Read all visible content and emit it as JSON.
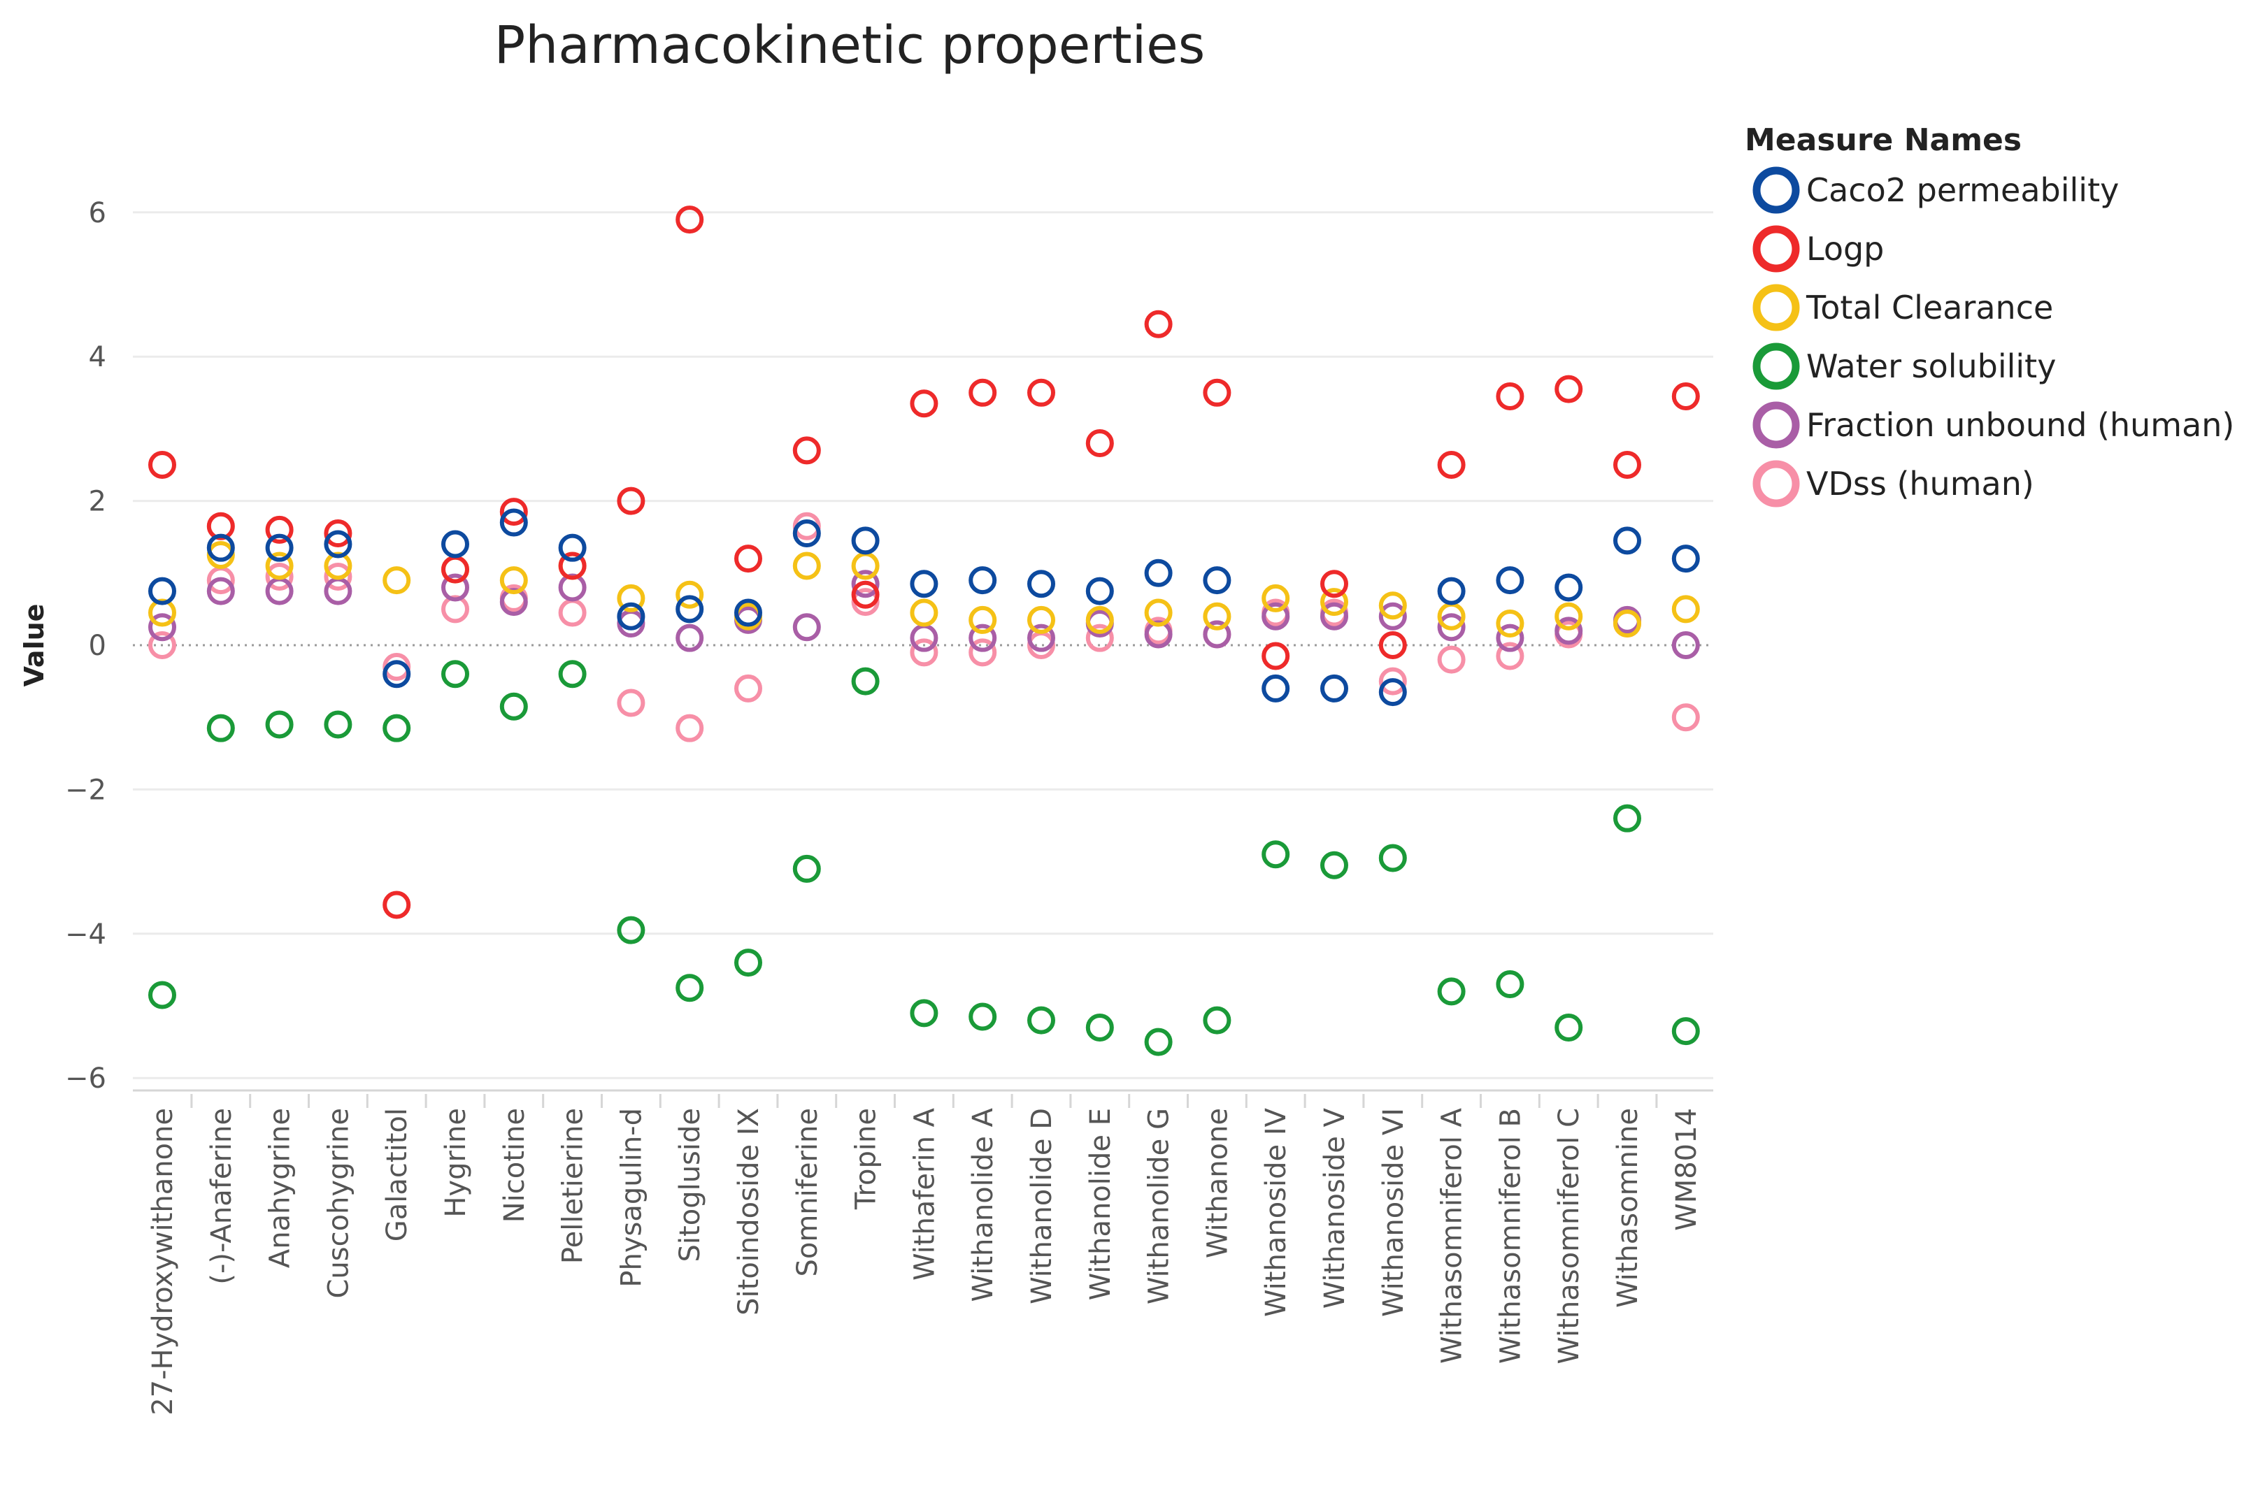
{
  "chart_data": {
    "type": "scatter",
    "title": "Pharmacokinetic properties",
    "xlabel": "",
    "ylabel": "Value",
    "ylim": [
      -6.2,
      6.4
    ],
    "yticks": [
      6,
      4,
      2,
      0,
      -2,
      -4,
      -6
    ],
    "ytick_labels": [
      "6",
      "4",
      "2",
      "0",
      "−2",
      "−4",
      "−6"
    ],
    "grid": true,
    "legend_title": "Measure Names",
    "legend_position": "right",
    "categories": [
      "27-Hydroxywithanone",
      "(-)-Anaferine",
      "Anahygrine",
      "Cuscohygrine",
      "Galactitol",
      "Hygrine",
      "Nicotine",
      "Pelletierine",
      "Physagulin-d",
      "Sitogluside",
      "Sitoindoside IX",
      "Somniferine",
      "Tropine",
      "Withaferin A",
      "Withanolide A",
      "Withanolide D",
      "Withanolide E",
      "Withanolide G",
      "Withanone",
      "Withanoside IV",
      "Withanoside V",
      "Withanoside VI",
      "Withasomniferol A",
      "Withasomniferol B",
      "Withasomniferol C",
      "Withasomnine",
      "WM8014"
    ],
    "series": [
      {
        "name": "VDss (human)",
        "color": "#f78fa7",
        "values": [
          0.0,
          0.9,
          0.95,
          0.95,
          -0.3,
          0.5,
          0.65,
          0.45,
          -0.8,
          -1.15,
          -0.6,
          1.65,
          0.6,
          -0.1,
          -0.1,
          0.0,
          0.1,
          0.2,
          0.15,
          0.45,
          0.45,
          -0.5,
          -0.2,
          -0.15,
          0.15,
          0.3,
          -1.0
        ]
      },
      {
        "name": "Fraction unbound (human)",
        "color": "#a95ea6",
        "values": [
          0.25,
          0.75,
          0.75,
          0.75,
          null,
          0.8,
          0.6,
          0.8,
          0.3,
          0.1,
          0.35,
          0.25,
          0.85,
          0.1,
          0.1,
          0.1,
          0.3,
          0.15,
          0.15,
          0.4,
          0.4,
          0.4,
          0.25,
          0.1,
          0.2,
          0.35,
          0.0
        ]
      },
      {
        "name": "Water solubility",
        "color": "#1a9a38",
        "values": [
          -4.85,
          -1.15,
          -1.1,
          -1.1,
          -1.15,
          -0.4,
          -0.85,
          -0.4,
          -3.95,
          -4.75,
          -4.4,
          -3.1,
          -0.5,
          -5.1,
          -5.15,
          -5.2,
          -5.3,
          -5.5,
          -5.2,
          -2.9,
          -3.05,
          -2.95,
          -4.8,
          -4.7,
          -5.3,
          -2.4,
          -5.35
        ]
      },
      {
        "name": "Total Clearance",
        "color": "#f5c116",
        "values": [
          0.45,
          1.25,
          1.1,
          1.1,
          0.9,
          1.05,
          0.9,
          1.1,
          0.65,
          0.7,
          0.4,
          1.1,
          1.1,
          0.45,
          0.35,
          0.35,
          0.35,
          0.45,
          0.4,
          0.65,
          0.6,
          0.55,
          0.4,
          0.3,
          0.4,
          0.3,
          0.5
        ]
      },
      {
        "name": "Logp",
        "color": "#ee2a2a",
        "values": [
          2.5,
          1.65,
          1.6,
          1.55,
          -3.6,
          1.05,
          1.85,
          1.1,
          2.0,
          5.9,
          1.2,
          2.7,
          0.7,
          3.35,
          3.5,
          3.5,
          2.8,
          4.45,
          3.5,
          -0.15,
          0.85,
          0.0,
          2.5,
          3.45,
          3.55,
          2.5,
          3.45
        ]
      },
      {
        "name": "Caco2 permeability",
        "color": "#0d4a9f",
        "values": [
          0.75,
          1.35,
          1.35,
          1.4,
          -0.4,
          1.4,
          1.7,
          1.35,
          0.4,
          0.5,
          0.45,
          1.55,
          1.45,
          0.85,
          0.9,
          0.85,
          0.75,
          1.0,
          0.9,
          -0.6,
          -0.6,
          -0.65,
          0.75,
          0.9,
          0.8,
          1.45,
          1.2
        ]
      }
    ],
    "legend_order": [
      "Caco2 permeability",
      "Logp",
      "Total Clearance",
      "Water solubility",
      "Fraction unbound (human)",
      "VDss (human)"
    ]
  }
}
